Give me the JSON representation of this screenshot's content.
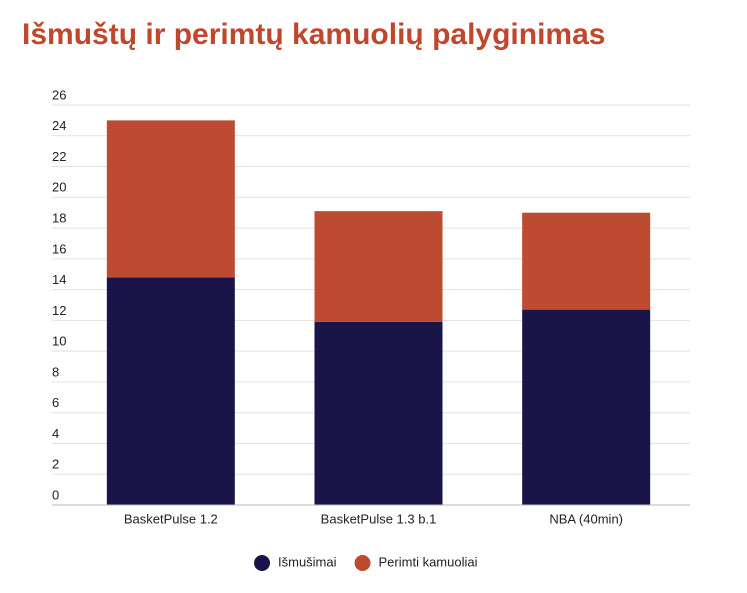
{
  "chart_data": {
    "type": "stacked_bar",
    "title": "Išmuštų ir perimtų kamuolių palyginimas",
    "categories": [
      "BasketPulse 1.2",
      "BasketPulse 1.3 b.1",
      "NBA (40min)"
    ],
    "series": [
      {
        "name": "Išmušimai",
        "color": "#1a1548",
        "values": [
          14.8,
          11.9,
          12.7
        ]
      },
      {
        "name": "Perimti kamuoliai",
        "color": "#bd4b31",
        "values": [
          10.2,
          7.2,
          6.3
        ]
      }
    ],
    "ylim": [
      0,
      26
    ],
    "yticks": [
      0,
      2,
      4,
      6,
      8,
      10,
      12,
      14,
      16,
      18,
      20,
      22,
      24,
      26
    ],
    "grid": true
  }
}
